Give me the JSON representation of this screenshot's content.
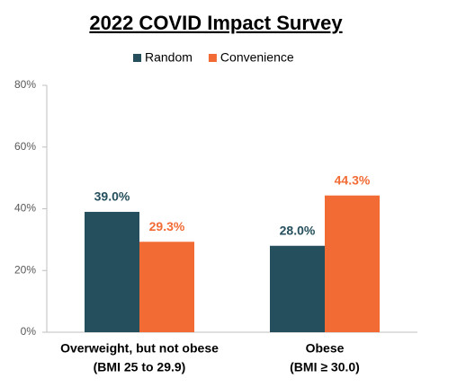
{
  "chart_data": {
    "type": "bar",
    "title": "2022 COVID Impact Survey",
    "categories": [
      [
        "Overweight, but not obese",
        "(BMI 25 to 29.9)"
      ],
      [
        "Obese",
        "(BMI ≥ 30.0)"
      ]
    ],
    "series": [
      {
        "name": "Random",
        "color": "#254f5c",
        "values": [
          39.0,
          28.0
        ],
        "value_labels": [
          "39.0%",
          "28.0%"
        ]
      },
      {
        "name": "Convenience",
        "color": "#f26b35",
        "values": [
          29.3,
          44.3
        ],
        "value_labels": [
          "29.3%",
          "44.3%"
        ]
      }
    ],
    "ylim": [
      0,
      80
    ],
    "yticks": [
      {
        "value": 0,
        "label": "0%"
      },
      {
        "value": 20,
        "label": "20%"
      },
      {
        "value": 40,
        "label": "40%"
      },
      {
        "value": 60,
        "label": "60%"
      },
      {
        "value": 80,
        "label": "80%"
      }
    ],
    "legend": "top",
    "grid": false
  }
}
